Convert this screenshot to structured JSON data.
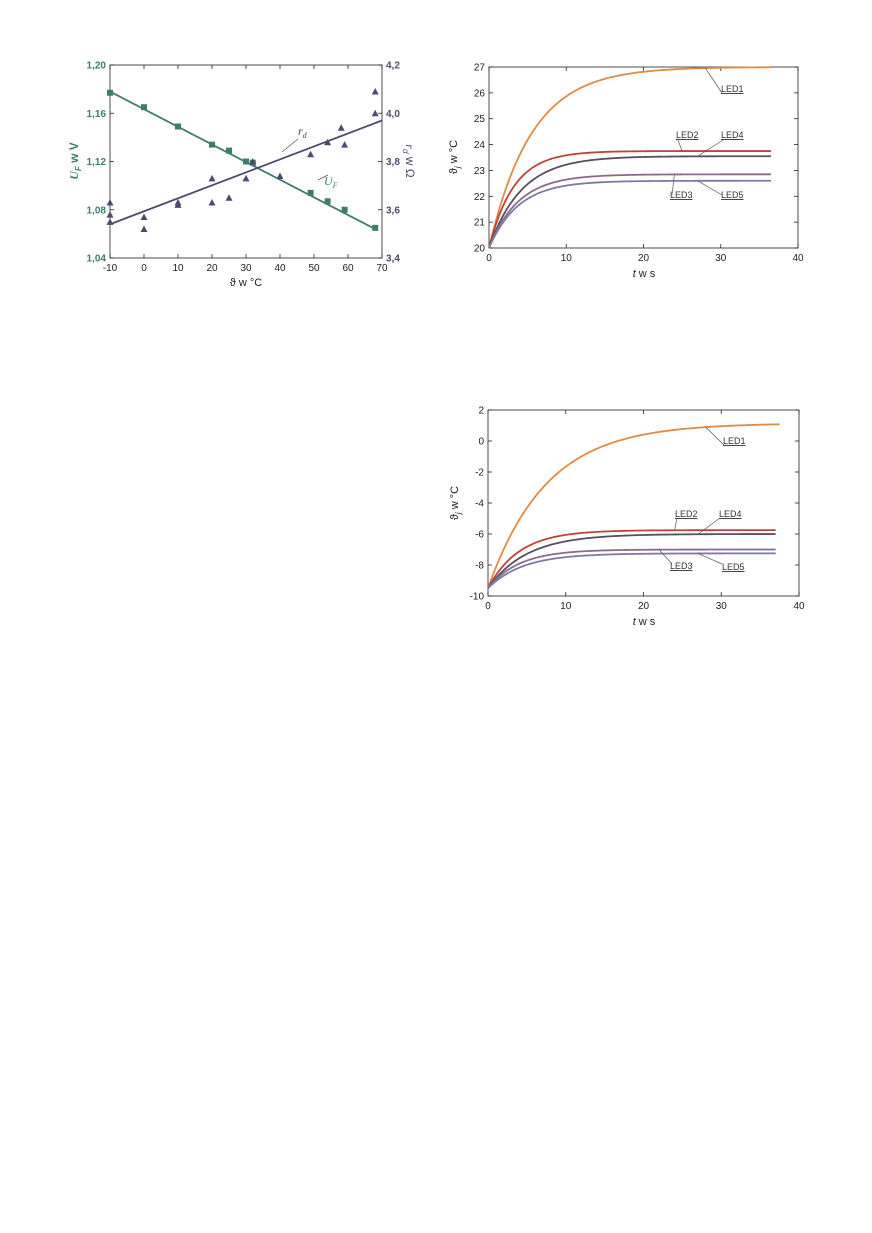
{
  "chart_data": [
    {
      "type": "scatter",
      "title": "",
      "xlabel": "ϑ w °C",
      "ylabel_left": "U_F w V",
      "ylabel_right": "r_d w Ω",
      "xlim": [
        -10,
        70
      ],
      "ylim_left": [
        1.04,
        1.2
      ],
      "ylim_right": [
        3.4,
        4.2
      ],
      "x_ticks": [
        "-10",
        "0",
        "10",
        "20",
        "30",
        "40",
        "50",
        "60",
        "70"
      ],
      "y_ticks_left": [
        "1,04",
        "1,08",
        "1,12",
        "1,16",
        "1,20"
      ],
      "y_ticks_right": [
        "3,4",
        "3,6",
        "3,8",
        "4,0",
        "4,2"
      ],
      "colors": {
        "UF": "#3e7d68",
        "rd": "#4e4a6e"
      },
      "series": [
        {
          "name": "U_F",
          "axis": "left",
          "x": [
            -10,
            0,
            10,
            20,
            25,
            30,
            32,
            49,
            54,
            59,
            68
          ],
          "y": [
            1.177,
            1.165,
            1.149,
            1.134,
            1.129,
            1.12,
            1.119,
            1.094,
            1.087,
            1.08,
            1.065
          ],
          "fit": {
            "x": [
              -10,
              68
            ],
            "y": [
              1.178,
              1.064
            ]
          }
        },
        {
          "name": "r_d",
          "axis": "right",
          "x": [
            -10,
            -10,
            -10,
            0,
            0,
            10,
            10,
            20,
            20,
            25,
            30,
            32,
            40,
            49,
            54,
            58,
            59,
            68,
            68
          ],
          "y": [
            3.55,
            3.63,
            3.58,
            3.57,
            3.52,
            3.62,
            3.63,
            3.73,
            3.63,
            3.65,
            3.73,
            3.8,
            3.74,
            3.83,
            3.88,
            3.94,
            3.87,
            4.09,
            4.0
          ],
          "fit": {
            "x": [
              -10,
              70
            ],
            "y": [
              3.54,
              3.97
            ]
          }
        }
      ]
    },
    {
      "type": "line",
      "title": "",
      "xlabel": "t w s",
      "ylabel": "ϑ_j w °C",
      "xlim": [
        0,
        40
      ],
      "ylim": [
        20,
        27
      ],
      "x_ticks": [
        "0",
        "10",
        "20",
        "30",
        "40"
      ],
      "y_ticks": [
        "20",
        "21",
        "22",
        "23",
        "24",
        "25",
        "26",
        "27"
      ],
      "series": [
        {
          "name": "LED1",
          "y0": 20,
          "yinf": 27.0,
          "tau": 5.5,
          "tmax": 36.5,
          "color": "#e08b45"
        },
        {
          "name": "LED2",
          "y0": 20,
          "yinf": 23.75,
          "tau": 3.2,
          "tmax": 36.5,
          "color": "#c0433a"
        },
        {
          "name": "LED4",
          "y0": 20,
          "yinf": 23.55,
          "tau": 4.2,
          "tmax": 36.5,
          "color": "#55505f"
        },
        {
          "name": "LED3",
          "y0": 20,
          "yinf": 22.85,
          "tau": 3.8,
          "tmax": 36.5,
          "color": "#8a6b8c"
        },
        {
          "name": "LED5",
          "y0": 20,
          "yinf": 22.6,
          "tau": 3.8,
          "tmax": 36.5,
          "color": "#7d7aa6"
        }
      ]
    },
    {
      "type": "line",
      "title": "",
      "xlabel": "t w s",
      "ylabel": "ϑ_j w °C",
      "xlim": [
        0,
        40
      ],
      "ylim": [
        -10,
        2
      ],
      "x_ticks": [
        "0",
        "10",
        "20",
        "30",
        "40"
      ],
      "y_ticks": [
        "-10",
        "-8",
        "-6",
        "-4",
        "-2",
        "0",
        "2"
      ],
      "series": [
        {
          "name": "LED1",
          "y0": -9.5,
          "yinf": 1.15,
          "tau": 7.5,
          "tmax": 37.5,
          "color": "#e08b45"
        },
        {
          "name": "LED2",
          "y0": -9.5,
          "yinf": -5.75,
          "tau": 4.0,
          "tmax": 37.0,
          "color": "#c0433a"
        },
        {
          "name": "LED4",
          "y0": -9.5,
          "yinf": -6.0,
          "tau": 5.0,
          "tmax": 37.0,
          "color": "#55505f"
        },
        {
          "name": "LED3",
          "y0": -9.5,
          "yinf": -7.0,
          "tau": 4.0,
          "tmax": 37.0,
          "color": "#8a6b8c"
        },
        {
          "name": "LED5",
          "y0": -9.5,
          "yinf": -7.25,
          "tau": 4.5,
          "tmax": 37.0,
          "color": "#7d7aa6"
        }
      ]
    }
  ]
}
